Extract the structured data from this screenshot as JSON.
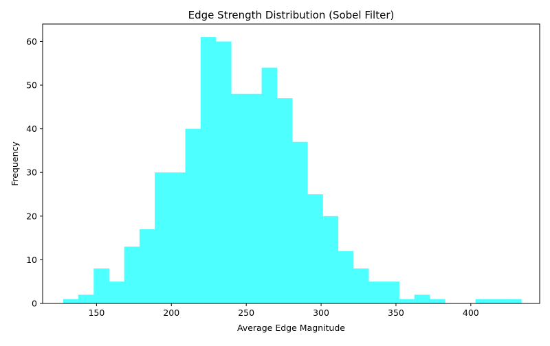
{
  "chart_data": {
    "type": "bar",
    "title": "Edge Strength Distribution (Sobel Filter)",
    "xlabel": "Average Edge Magnitude",
    "ylabel": "Frequency",
    "xlim": [
      114,
      446
    ],
    "ylim": [
      0,
      64
    ],
    "xticks": [
      150,
      200,
      250,
      300,
      350,
      400
    ],
    "yticks": [
      0,
      10,
      20,
      30,
      40,
      50,
      60
    ],
    "bar_color": "#4dffff",
    "grid": false,
    "legend": "none",
    "bins": [
      {
        "x0": 127.7,
        "x1": 137.9,
        "count": 1
      },
      {
        "x0": 137.9,
        "x1": 148.1,
        "count": 2
      },
      {
        "x0": 148.1,
        "x1": 158.3,
        "count": 8
      },
      {
        "x0": 158.3,
        "x1": 168.5,
        "count": 5
      },
      {
        "x0": 168.5,
        "x1": 178.7,
        "count": 13
      },
      {
        "x0": 178.7,
        "x1": 188.9,
        "count": 17
      },
      {
        "x0": 188.9,
        "x1": 199.1,
        "count": 30
      },
      {
        "x0": 199.1,
        "x1": 209.3,
        "count": 30
      },
      {
        "x0": 209.3,
        "x1": 219.5,
        "count": 40
      },
      {
        "x0": 219.5,
        "x1": 229.7,
        "count": 61
      },
      {
        "x0": 229.7,
        "x1": 239.9,
        "count": 60
      },
      {
        "x0": 239.9,
        "x1": 250.1,
        "count": 48
      },
      {
        "x0": 250.1,
        "x1": 260.3,
        "count": 48
      },
      {
        "x0": 260.3,
        "x1": 270.5,
        "count": 54
      },
      {
        "x0": 270.5,
        "x1": 280.7,
        "count": 47
      },
      {
        "x0": 280.7,
        "x1": 290.9,
        "count": 37
      },
      {
        "x0": 290.9,
        "x1": 301.1,
        "count": 25
      },
      {
        "x0": 301.1,
        "x1": 311.3,
        "count": 20
      },
      {
        "x0": 311.3,
        "x1": 321.5,
        "count": 12
      },
      {
        "x0": 321.5,
        "x1": 331.7,
        "count": 8
      },
      {
        "x0": 331.7,
        "x1": 341.9,
        "count": 5
      },
      {
        "x0": 341.9,
        "x1": 352.1,
        "count": 5
      },
      {
        "x0": 352.1,
        "x1": 362.3,
        "count": 1
      },
      {
        "x0": 362.3,
        "x1": 372.5,
        "count": 2
      },
      {
        "x0": 372.5,
        "x1": 382.7,
        "count": 1
      },
      {
        "x0": 382.7,
        "x1": 392.9,
        "count": 0
      },
      {
        "x0": 392.9,
        "x1": 403.1,
        "count": 0
      },
      {
        "x0": 403.1,
        "x1": 413.3,
        "count": 1
      },
      {
        "x0": 413.3,
        "x1": 423.5,
        "count": 1
      },
      {
        "x0": 423.5,
        "x1": 433.7,
        "count": 1
      }
    ]
  }
}
